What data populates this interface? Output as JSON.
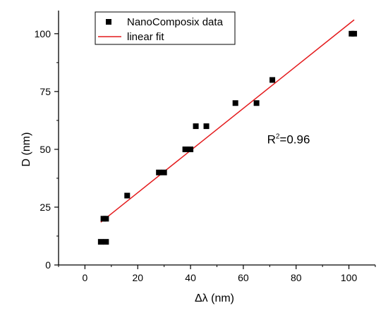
{
  "chart_data": {
    "type": "scatter",
    "xlabel": "Δλ (nm)",
    "ylabel": "D (nm)",
    "xlim": [
      -10,
      110
    ],
    "ylim": [
      0,
      110
    ],
    "x_ticks": [
      0,
      20,
      40,
      60,
      80,
      100
    ],
    "y_ticks": [
      0,
      25,
      50,
      75,
      100
    ],
    "grid": false,
    "legend_position": "top-left",
    "series": [
      {
        "name": "NanoComposix data",
        "kind": "scatter",
        "marker": "square",
        "color": "#000000",
        "points": [
          {
            "x": 6,
            "y": 10
          },
          {
            "x": 7,
            "y": 20
          },
          {
            "x": 8,
            "y": 10
          },
          {
            "x": 8,
            "y": 20
          },
          {
            "x": 16,
            "y": 30
          },
          {
            "x": 28,
            "y": 40
          },
          {
            "x": 30,
            "y": 40
          },
          {
            "x": 38,
            "y": 50
          },
          {
            "x": 40,
            "y": 50
          },
          {
            "x": 42,
            "y": 60
          },
          {
            "x": 46,
            "y": 60
          },
          {
            "x": 57,
            "y": 70
          },
          {
            "x": 65,
            "y": 70
          },
          {
            "x": 71,
            "y": 80
          },
          {
            "x": 101,
            "y": 100
          },
          {
            "x": 102,
            "y": 100
          }
        ]
      },
      {
        "name": "linear fit",
        "kind": "line",
        "color": "#e41a1c",
        "points": [
          {
            "x": 6,
            "y": 18.5
          },
          {
            "x": 102,
            "y": 106
          }
        ]
      }
    ],
    "annotations": [
      {
        "text": "R",
        "sup": "2",
        "rest": "=0.96",
        "x": 69,
        "y": 52.5
      }
    ]
  }
}
